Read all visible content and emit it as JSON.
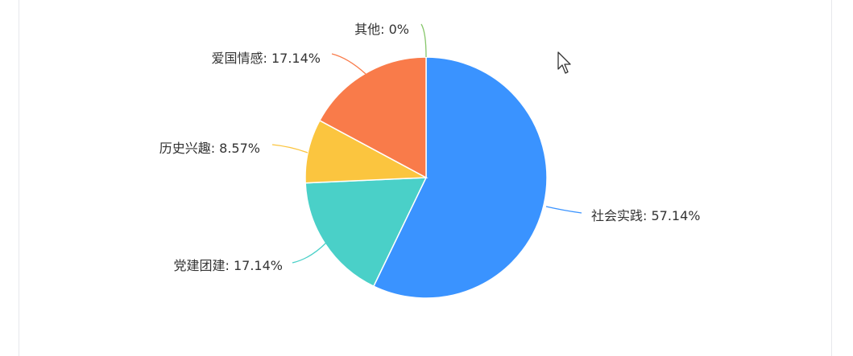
{
  "chart_data": {
    "type": "pie",
    "title": "",
    "slices": [
      {
        "label": "社会实践",
        "value": 57.14,
        "label_text": "社会实践: 57.14%",
        "color": "#3a93ff"
      },
      {
        "label": "党建团建",
        "value": 17.14,
        "label_text": "党建团建: 17.14%",
        "color": "#4ad0c8"
      },
      {
        "label": "历史兴趣",
        "value": 8.57,
        "label_text": "历史兴趣: 8.57%",
        "color": "#fbc53f"
      },
      {
        "label": "爱国情感",
        "value": 17.14,
        "label_text": "爱国情感: 17.14%",
        "color": "#f97b4a"
      },
      {
        "label": "其他",
        "value": 0,
        "label_text": "其他: 0%",
        "color": "#86c66a"
      }
    ],
    "start_angle": "12 o'clock",
    "direction": "clockwise",
    "legend": "none"
  },
  "cursor_icon": "arrow-cursor-icon"
}
